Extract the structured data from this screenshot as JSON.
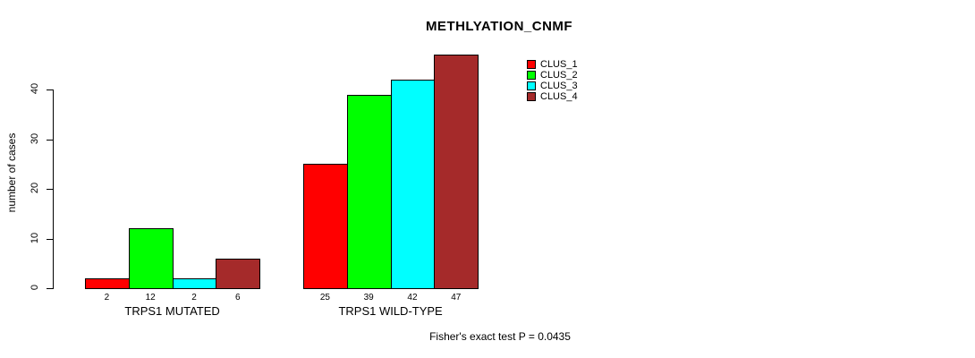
{
  "title": "METHLYATION_CNMF",
  "ylabel": "number of cases",
  "footer": "Fisher's exact test P = 0.0435",
  "chart_data": {
    "type": "bar",
    "title": "METHLYATION_CNMF",
    "xlabel": "",
    "ylabel": "number of cases",
    "categories": [
      "TRPS1 MUTATED",
      "TRPS1 WILD-TYPE"
    ],
    "series": [
      {
        "name": "CLUS_1",
        "color": "#ff0000",
        "values": [
          2,
          25
        ]
      },
      {
        "name": "CLUS_2",
        "color": "#00ff00",
        "values": [
          12,
          39
        ]
      },
      {
        "name": "CLUS_3",
        "color": "#00ffff",
        "values": [
          2,
          42
        ]
      },
      {
        "name": "CLUS_4",
        "color": "#a52a2a",
        "values": [
          6,
          47
        ]
      }
    ],
    "bar_value_labels": [
      [
        "2",
        "12",
        "2",
        "6"
      ],
      [
        "25",
        "39",
        "42",
        "47"
      ]
    ],
    "yticks": [
      0,
      10,
      20,
      30,
      40
    ],
    "ylim": [
      0,
      40
    ],
    "grid": false,
    "legend_position": "top-right",
    "annotation": "Fisher's exact test P = 0.0435"
  }
}
